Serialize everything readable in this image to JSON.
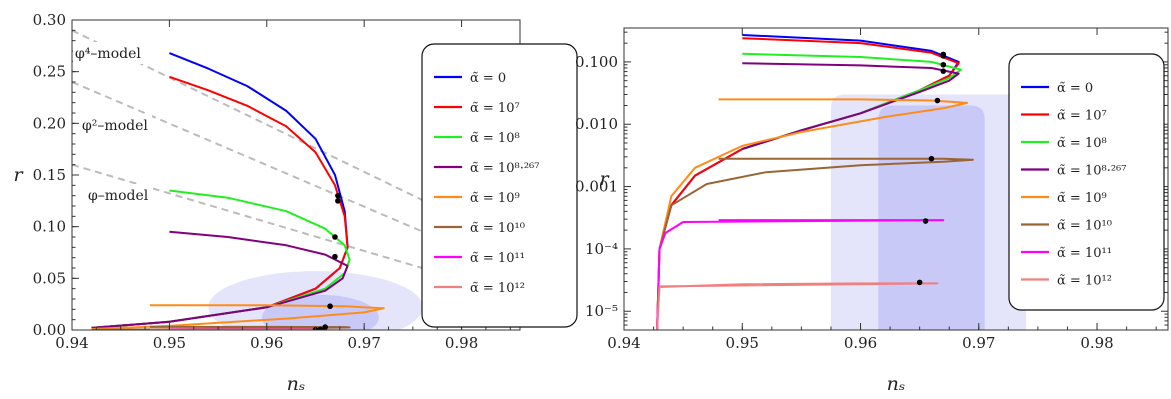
{
  "chart_data": [
    {
      "type": "line",
      "scale": "linear",
      "xlabel": "n_s",
      "ylabel": "r",
      "xlim": [
        0.94,
        0.986
      ],
      "ylim": [
        0.0,
        0.3
      ],
      "xticks": [
        0.94,
        0.95,
        0.96,
        0.97,
        0.98
      ],
      "xtick_labels": [
        "0.94",
        "0.95",
        "0.96",
        "0.97",
        "0.98"
      ],
      "yticks": [
        0.0,
        0.05,
        0.1,
        0.15,
        0.2,
        0.25,
        0.3
      ],
      "ytick_labels": [
        "0.00",
        "0.05",
        "0.10",
        "0.15",
        "0.20",
        "0.25",
        "0.30"
      ],
      "legend_position": "right",
      "legend": [
        {
          "label": "α̃ = 0",
          "color": "#0000ff"
        },
        {
          "label": "α̃ = 10⁷",
          "color": "#ff0000"
        },
        {
          "label": "α̃ = 10⁸",
          "color": "#22ee22"
        },
        {
          "label": "α̃ = 10⁸·²⁶⁷",
          "color": "#800080"
        },
        {
          "label": "α̃ = 10⁹",
          "color": "#ff8c1a"
        },
        {
          "label": "α̃ = 10¹⁰",
          "color": "#996633"
        },
        {
          "label": "α̃ = 10¹¹",
          "color": "#ff00ff"
        },
        {
          "label": "α̃ = 10¹²",
          "color": "#f08080"
        }
      ],
      "model_lines": [
        {
          "label": "φ⁴–model",
          "points": [
            [
              0.94,
              0.29
            ],
            [
              0.986,
              0.08
            ]
          ]
        },
        {
          "label": "φ²–model",
          "points": [
            [
              0.94,
              0.24
            ],
            [
              0.986,
              0.055
            ]
          ]
        },
        {
          "label": "φ–model",
          "points": [
            [
              0.94,
              0.16
            ],
            [
              0.986,
              0.032
            ]
          ]
        }
      ],
      "series": [
        {
          "points": [
            [
              0.95,
              0.268
            ],
            [
              0.954,
              0.253
            ],
            [
              0.958,
              0.236
            ],
            [
              0.962,
              0.212
            ],
            [
              0.965,
              0.185
            ],
            [
              0.967,
              0.15
            ],
            [
              0.968,
              0.115
            ],
            [
              0.9683,
              0.08
            ],
            [
              0.9675,
              0.06
            ],
            [
              0.965,
              0.04
            ],
            [
              0.96,
              0.022
            ],
            [
              0.95,
              0.008
            ],
            [
              0.942,
              0.002
            ]
          ],
          "marker": [
            0.9673,
            0.13
          ]
        },
        {
          "points": [
            [
              0.95,
              0.245
            ],
            [
              0.954,
              0.232
            ],
            [
              0.958,
              0.217
            ],
            [
              0.962,
              0.197
            ],
            [
              0.965,
              0.172
            ],
            [
              0.967,
              0.14
            ],
            [
              0.968,
              0.11
            ],
            [
              0.9683,
              0.08
            ],
            [
              0.9675,
              0.06
            ],
            [
              0.965,
              0.04
            ],
            [
              0.96,
              0.022
            ],
            [
              0.95,
              0.008
            ],
            [
              0.942,
              0.002
            ]
          ],
          "marker": [
            0.9673,
            0.125
          ]
        },
        {
          "points": [
            [
              0.95,
              0.135
            ],
            [
              0.956,
              0.128
            ],
            [
              0.962,
              0.115
            ],
            [
              0.966,
              0.098
            ],
            [
              0.968,
              0.082
            ],
            [
              0.9685,
              0.068
            ],
            [
              0.968,
              0.055
            ],
            [
              0.966,
              0.04
            ],
            [
              0.96,
              0.022
            ],
            [
              0.95,
              0.008
            ],
            [
              0.942,
              0.002
            ]
          ],
          "marker": [
            0.967,
            0.09
          ]
        },
        {
          "points": [
            [
              0.95,
              0.095
            ],
            [
              0.956,
              0.09
            ],
            [
              0.962,
              0.082
            ],
            [
              0.966,
              0.073
            ],
            [
              0.9683,
              0.062
            ],
            [
              0.9678,
              0.05
            ],
            [
              0.966,
              0.038
            ],
            [
              0.96,
              0.022
            ],
            [
              0.95,
              0.008
            ],
            [
              0.942,
              0.002
            ]
          ],
          "marker": [
            0.967,
            0.071
          ]
        },
        {
          "points": [
            [
              0.948,
              0.024
            ],
            [
              0.96,
              0.024
            ],
            [
              0.968,
              0.023
            ],
            [
              0.972,
              0.021
            ],
            [
              0.97,
              0.017
            ],
            [
              0.962,
              0.011
            ],
            [
              0.95,
              0.004
            ],
            [
              0.942,
              0.001
            ]
          ],
          "marker": [
            0.9665,
            0.023
          ]
        },
        {
          "points": [
            [
              0.948,
              0.003
            ],
            [
              0.96,
              0.003
            ],
            [
              0.968,
              0.0028
            ],
            [
              0.9685,
              0.0025
            ],
            [
              0.96,
              0.0015
            ],
            [
              0.95,
              0.0007
            ],
            [
              0.942,
              0.0002
            ]
          ],
          "marker": [
            0.966,
            0.0028
          ]
        },
        {
          "points": [
            [
              0.95,
              0.0006
            ],
            [
              0.96,
              0.0006
            ],
            [
              0.966,
              0.0006
            ],
            [
              0.966,
              0.0004
            ]
          ],
          "marker": [
            0.9655,
            0.0006
          ]
        },
        {
          "points": [
            [
              0.948,
              0.0004
            ],
            [
              0.96,
              0.0004
            ],
            [
              0.965,
              0.0004
            ]
          ],
          "marker": [
            0.965,
            0.0003
          ]
        }
      ],
      "contours": [
        {
          "center": [
            0.965,
            0.022
          ],
          "rx": 0.011,
          "ry": 0.035,
          "opacity": 0.18
        },
        {
          "center": [
            0.9655,
            0.012
          ],
          "rx": 0.006,
          "ry": 0.022,
          "opacity": 0.22
        }
      ]
    },
    {
      "type": "line",
      "scale": "log-y",
      "xlabel": "n_s",
      "ylabel": "r",
      "xlim": [
        0.94,
        0.986
      ],
      "ylim": [
        5e-06,
        0.35
      ],
      "xticks": [
        0.94,
        0.95,
        0.96,
        0.97,
        0.98
      ],
      "xtick_labels": [
        "0.94",
        "0.95",
        "0.96",
        "0.97",
        "0.98"
      ],
      "yticks": [
        1e-05,
        0.0001,
        0.001,
        0.01,
        0.1
      ],
      "ytick_labels": [
        "10⁻⁵",
        "10⁻⁴",
        "0.001",
        "0.010",
        "0.100"
      ],
      "legend_position": "right",
      "legend": [
        {
          "label": "α̃ = 0",
          "color": "#0000ff"
        },
        {
          "label": "α̃ = 10⁷",
          "color": "#ff0000"
        },
        {
          "label": "α̃ = 10⁸",
          "color": "#22ee22"
        },
        {
          "label": "α̃ = 10⁸·²⁶⁷",
          "color": "#800080"
        },
        {
          "label": "α̃ = 10⁹",
          "color": "#ff8c1a"
        },
        {
          "label": "α̃ = 10¹⁰",
          "color": "#996633"
        },
        {
          "label": "α̃ = 10¹¹",
          "color": "#ff00ff"
        },
        {
          "label": "α̃ = 10¹²",
          "color": "#f08080"
        }
      ],
      "series": [
        {
          "points": [
            [
              0.95,
              0.27
            ],
            [
              0.96,
              0.22
            ],
            [
              0.966,
              0.15
            ],
            [
              0.9683,
              0.1
            ],
            [
              0.9675,
              0.06
            ],
            [
              0.965,
              0.035
            ],
            [
              0.96,
              0.015
            ],
            [
              0.955,
              0.008
            ],
            [
              0.95,
              0.004
            ],
            [
              0.946,
              0.0015
            ],
            [
              0.944,
              0.0005
            ],
            [
              0.943,
              0.0001
            ],
            [
              0.9428,
              5e-06
            ]
          ],
          "marker": [
            0.967,
            0.132
          ]
        },
        {
          "points": [
            [
              0.95,
              0.24
            ],
            [
              0.96,
              0.2
            ],
            [
              0.966,
              0.14
            ],
            [
              0.9683,
              0.095
            ],
            [
              0.9675,
              0.06
            ],
            [
              0.965,
              0.035
            ],
            [
              0.96,
              0.015
            ],
            [
              0.955,
              0.008
            ],
            [
              0.95,
              0.004
            ],
            [
              0.946,
              0.0015
            ],
            [
              0.944,
              0.0005
            ],
            [
              0.943,
              0.0001
            ],
            [
              0.9428,
              5e-06
            ]
          ],
          "marker": [
            0.967,
            0.125
          ]
        },
        {
          "points": [
            [
              0.95,
              0.135
            ],
            [
              0.96,
              0.12
            ],
            [
              0.966,
              0.1
            ],
            [
              0.9685,
              0.075
            ],
            [
              0.9675,
              0.055
            ],
            [
              0.965,
              0.035
            ],
            [
              0.96,
              0.015
            ],
            [
              0.955,
              0.008
            ],
            [
              0.95,
              0.004
            ]
          ],
          "marker": [
            0.967,
            0.09
          ]
        },
        {
          "points": [
            [
              0.95,
              0.095
            ],
            [
              0.96,
              0.088
            ],
            [
              0.966,
              0.08
            ],
            [
              0.9683,
              0.065
            ],
            [
              0.9675,
              0.05
            ],
            [
              0.965,
              0.033
            ],
            [
              0.96,
              0.015
            ],
            [
              0.955,
              0.008
            ],
            [
              0.95,
              0.004
            ]
          ],
          "marker": [
            0.967,
            0.071
          ]
        },
        {
          "points": [
            [
              0.948,
              0.025
            ],
            [
              0.96,
              0.025
            ],
            [
              0.966,
              0.024
            ],
            [
              0.969,
              0.022
            ],
            [
              0.967,
              0.018
            ],
            [
              0.962,
              0.013
            ],
            [
              0.955,
              0.0075
            ],
            [
              0.95,
              0.0045
            ],
            [
              0.946,
              0.002
            ],
            [
              0.944,
              0.0007
            ],
            [
              0.943,
              0.0001
            ],
            [
              0.9428,
              5e-06
            ]
          ],
          "marker": [
            0.9665,
            0.024
          ]
        },
        {
          "points": [
            [
              0.948,
              0.0028
            ],
            [
              0.96,
              0.0028
            ],
            [
              0.967,
              0.0028
            ],
            [
              0.9695,
              0.0027
            ],
            [
              0.967,
              0.0025
            ],
            [
              0.96,
              0.0022
            ],
            [
              0.952,
              0.0017
            ],
            [
              0.947,
              0.0011
            ],
            [
              0.944,
              0.0005
            ],
            [
              0.943,
              0.0001
            ]
          ],
          "marker": [
            0.966,
            0.0028
          ]
        },
        {
          "points": [
            [
              0.948,
              0.00029
            ],
            [
              0.96,
              0.00029
            ],
            [
              0.967,
              0.00029
            ],
            [
              0.945,
              0.00027
            ],
            [
              0.9435,
              0.00018
            ],
            [
              0.943,
              0.0001
            ],
            [
              0.9428,
              5e-06
            ]
          ],
          "marker": [
            0.9655,
            0.00028
          ]
        },
        {
          "points": [
            [
              0.943,
              2.45e-05
            ],
            [
              0.95,
              2.7e-05
            ],
            [
              0.96,
              2.8e-05
            ],
            [
              0.9665,
              2.8e-05
            ],
            [
              0.943,
              2.5e-05
            ],
            [
              0.9428,
              5e-06
            ]
          ],
          "marker": [
            0.965,
            2.9e-05
          ]
        }
      ],
      "contours": [
        {
          "x0": 0.9575,
          "x1": 0.974,
          "top": 0.03,
          "opacity": 0.18
        },
        {
          "x0": 0.9615,
          "x1": 0.9705,
          "top": 0.02,
          "opacity": 0.22
        }
      ]
    }
  ]
}
